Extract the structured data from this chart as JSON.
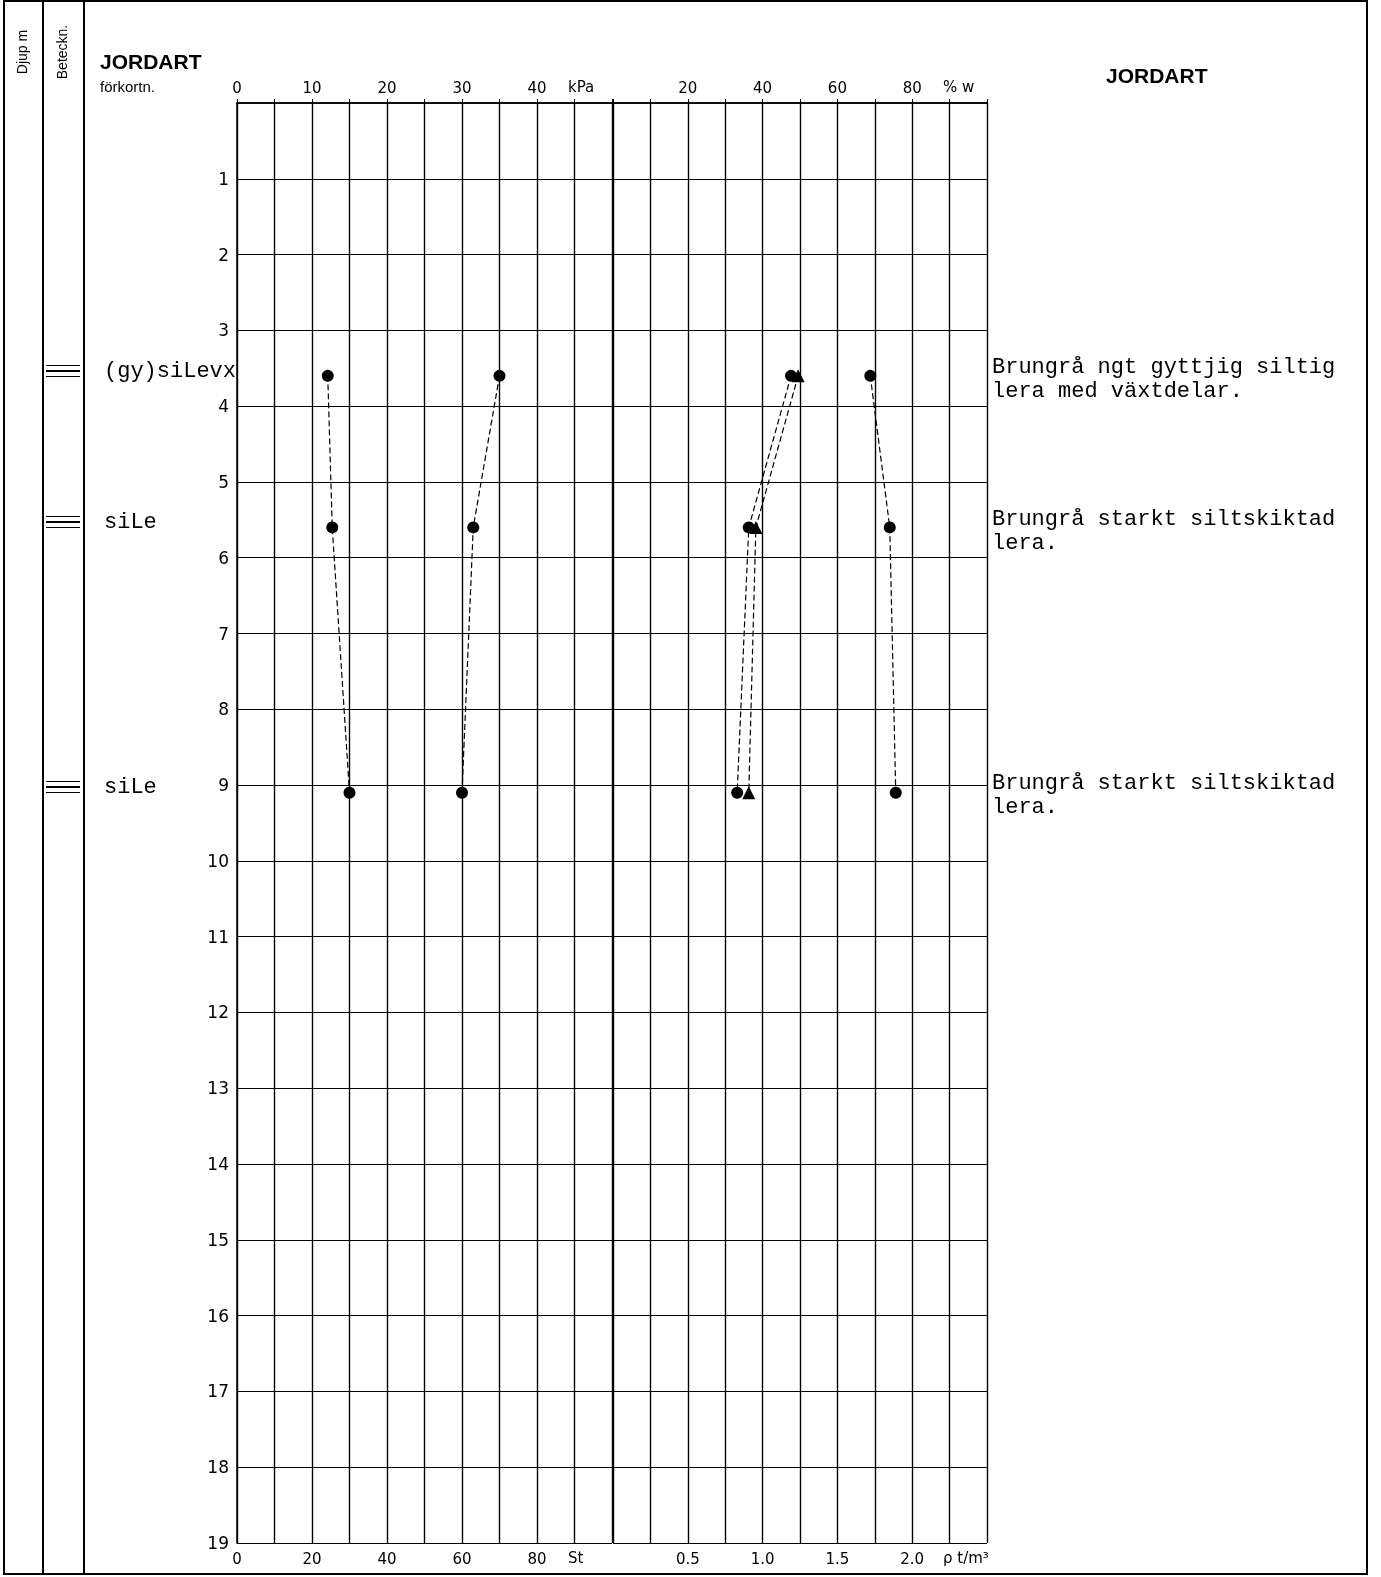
{
  "chart_data": [
    {
      "type": "line",
      "xlabel": "St",
      "x2label": "kPa",
      "ylabel": "Djup m",
      "xlim": [
        0,
        100
      ],
      "xticks": [
        0,
        {
          "value": 10,
          "label": null
        },
        20,
        {
          "value": 30,
          "label": null
        },
        40,
        {
          "value": 50,
          "label": null
        },
        60,
        {
          "value": 70,
          "label": null
        },
        80,
        {
          "value": 90,
          "label": null
        },
        {
          "value": 100,
          "label": null
        }
      ],
      "x2lim": [
        0,
        50
      ],
      "x2ticks": [
        0,
        {
          "value": 5,
          "label": null
        },
        10,
        {
          "value": 15,
          "label": null
        },
        20,
        {
          "value": 25,
          "label": null
        },
        30,
        {
          "value": 35,
          "label": null
        },
        40,
        {
          "value": 45,
          "label": null
        },
        {
          "value": 50,
          "label": null
        }
      ],
      "ylim": [
        19,
        0
      ],
      "yticks": [
        1,
        2,
        3,
        4,
        5,
        6,
        7,
        8,
        9,
        10,
        11,
        12,
        13,
        14,
        15,
        16,
        17,
        18,
        19
      ],
      "grid": true,
      "marker": "circle",
      "line_style": "dashed",
      "series": [
        {
          "x": [
            12.1,
            12.7,
            15.0
          ],
          "values": [
            3.6,
            5.6,
            9.1
          ],
          "axis": "x2",
          "color": "#000000"
        },
        {
          "x": [
            70,
            63,
            60
          ],
          "values": [
            3.6,
            5.6,
            9.1
          ],
          "color": "#000000"
        }
      ],
      "annotations": [
        "Beteckn.",
        "JORDART",
        "förkortn.",
        "(gy)siLevx",
        "siLe",
        "siLe"
      ]
    },
    {
      "type": "line",
      "xlabel": "ρ t/m³",
      "x2label": "% w",
      "xlim": [
        0,
        2.5
      ],
      "xticks": [
        {
          "value": 0,
          "label": null
        },
        {
          "value": 0.25,
          "label": null
        },
        {
          "value": 0.5,
          "label": "0.5"
        },
        {
          "value": 0.75,
          "label": null
        },
        {
          "value": 1,
          "label": "1.0"
        },
        {
          "value": 1.25,
          "label": null
        },
        {
          "value": 1.5,
          "label": "1.5"
        },
        {
          "value": 1.75,
          "label": null
        },
        {
          "value": 2,
          "label": "2.0"
        },
        {
          "value": 2.25,
          "label": null
        },
        {
          "value": 2.5,
          "label": null
        }
      ],
      "x2lim": [
        0,
        100
      ],
      "x2ticks": [
        {
          "value": 0,
          "label": null
        },
        {
          "value": 10,
          "label": null
        },
        20,
        {
          "value": 30,
          "label": null
        },
        40,
        {
          "value": 50,
          "label": null
        },
        60,
        {
          "value": 70,
          "label": null
        },
        80,
        {
          "value": 90,
          "label": null
        },
        {
          "value": 100,
          "label": null
        }
      ],
      "ylim": [
        19,
        0
      ],
      "yticks": [
        1,
        2,
        3,
        4,
        5,
        6,
        7,
        8,
        9,
        10,
        11,
        12,
        13,
        14,
        15,
        16,
        17,
        18,
        19
      ],
      "grid": true,
      "tick_labels": "x",
      "line_style": "dashed",
      "series": [
        {
          "x": [
            47.6,
            36.3,
            33.2
          ],
          "values": [
            3.6,
            5.6,
            9.1
          ],
          "axis": "x2",
          "marker": "circle",
          "color": "#000000"
        },
        {
          "x": [
            49.5,
            38.2,
            36.3
          ],
          "values": [
            3.6,
            5.6,
            9.1
          ],
          "axis": "x2",
          "marker": "triangle",
          "color": "#000000"
        },
        {
          "x": [
            1.72,
            1.85,
            1.89
          ],
          "values": [
            3.6,
            5.6,
            9.1
          ],
          "marker": "circle",
          "color": "#000000"
        }
      ],
      "annotations": [
        "JORDART",
        "Brungrå ngt gyttjig siltig lera med växtdelar.",
        "Brungrå starkt siltskiktad lera.",
        "Brungrå starkt siltskiktad lera."
      ]
    }
  ]
}
